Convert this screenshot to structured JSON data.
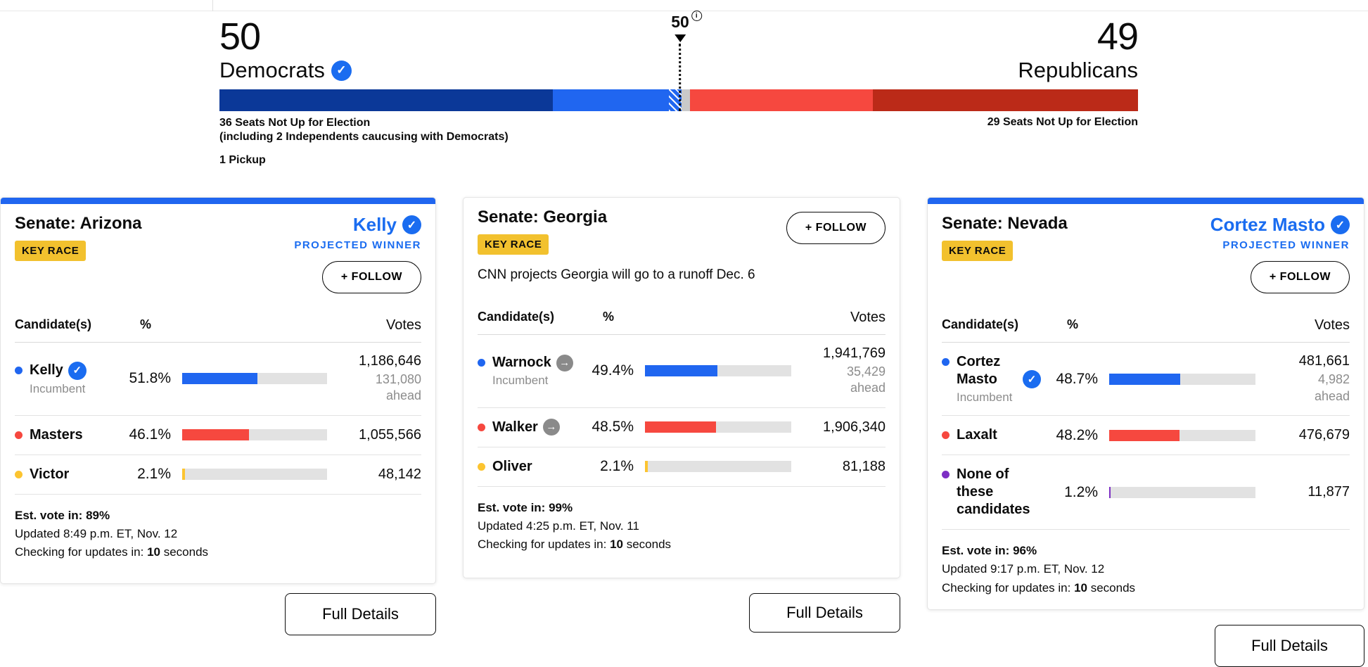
{
  "balance_of_power": {
    "democrats": {
      "count": "50",
      "party": "Democrats",
      "seats_note": "36 Seats Not Up for Election",
      "seats_subnote": "(including 2 Independents caucusing with Democrats)",
      "pickup_note": "1 Pickup"
    },
    "republicans": {
      "count": "49",
      "party": "Republicans",
      "seats_note": "29 Seats Not Up for Election"
    },
    "majority_marker": {
      "label": "50",
      "info_icon": "i"
    },
    "segments": [
      {
        "name": "dem-seats-not-up",
        "pct": 36.3,
        "color": "#0b3898"
      },
      {
        "name": "dem-projected",
        "pct": 12.6,
        "color": "#2066f0"
      },
      {
        "name": "dem-leading-hatched",
        "pct": 1.4,
        "color": "#2066f0"
      },
      {
        "name": "undecided",
        "pct": 0.9,
        "color": "#c9c9c9"
      },
      {
        "name": "rep-projected",
        "pct": 19.9,
        "color": "#f6483f"
      },
      {
        "name": "rep-seats-not-up",
        "pct": 28.9,
        "color": "#bb2a18"
      }
    ]
  },
  "cards": [
    {
      "title": "Senate: Arizona",
      "badge": "KEY RACE",
      "winner_name": "Kelly",
      "winner_label": "PROJECTED WINNER",
      "follow_label": "+ FOLLOW",
      "headers": {
        "candidate": "Candidate(s)",
        "percent": "%",
        "votes": "Votes"
      },
      "rows": [
        {
          "name": "Kelly",
          "subtitle": "Incumbent",
          "percent": "51.8%",
          "percent_value": 51.8,
          "votes": "1,186,646",
          "ahead": "131,080",
          "ahead_suffix": "ahead",
          "dot_color": "#2066f0",
          "bar_color": "#2066f0"
        },
        {
          "name": "Masters",
          "percent": "46.1%",
          "percent_value": 46.1,
          "votes": "1,055,566",
          "dot_color": "#f6483f",
          "bar_color": "#f6483f"
        },
        {
          "name": "Victor",
          "percent": "2.1%",
          "percent_value": 2.1,
          "votes": "48,142",
          "dot_color": "#fcc430",
          "bar_color": "#fcc430"
        }
      ],
      "footer": {
        "est": "Est. vote in: 89%",
        "updated": "Updated 8:49 p.m. ET, Nov. 12",
        "checking_prefix": "Checking for updates in: ",
        "checking_value": "10",
        "checking_suffix": " seconds"
      },
      "full_details": "Full Details"
    },
    {
      "title": "Senate: Georgia",
      "badge": "KEY RACE",
      "follow_label": "+ FOLLOW",
      "note": "CNN projects Georgia will go to a runoff Dec. 6",
      "headers": {
        "candidate": "Candidate(s)",
        "percent": "%",
        "votes": "Votes"
      },
      "rows": [
        {
          "name": "Warnock",
          "subtitle": "Incumbent",
          "percent": "49.4%",
          "percent_value": 49.4,
          "votes": "1,941,769",
          "ahead": "35,429",
          "ahead_suffix": "ahead",
          "dot_color": "#2066f0",
          "bar_color": "#2066f0",
          "runoff_icon": "→"
        },
        {
          "name": "Walker",
          "percent": "48.5%",
          "percent_value": 48.5,
          "votes": "1,906,340",
          "dot_color": "#f6483f",
          "bar_color": "#f6483f",
          "runoff_icon": "→"
        },
        {
          "name": "Oliver",
          "percent": "2.1%",
          "percent_value": 2.1,
          "votes": "81,188",
          "dot_color": "#fcc430",
          "bar_color": "#fcc430"
        }
      ],
      "footer": {
        "est": "Est. vote in: 99%",
        "updated": "Updated 4:25 p.m. ET, Nov. 11",
        "checking_prefix": "Checking for updates in: ",
        "checking_value": "10",
        "checking_suffix": " seconds"
      },
      "full_details": "Full Details"
    },
    {
      "title": "Senate: Nevada",
      "badge": "KEY RACE",
      "winner_name": "Cortez Masto",
      "winner_label": "PROJECTED WINNER",
      "follow_label": "+ FOLLOW",
      "headers": {
        "candidate": "Candidate(s)",
        "percent": "%",
        "votes": "Votes"
      },
      "rows": [
        {
          "name": "Cortez Masto",
          "subtitle": "Incumbent",
          "percent": "48.7%",
          "percent_value": 48.7,
          "votes": "481,661",
          "ahead": "4,982",
          "ahead_suffix": "ahead",
          "dot_color": "#2066f0",
          "bar_color": "#2066f0"
        },
        {
          "name": "Laxalt",
          "percent": "48.2%",
          "percent_value": 48.2,
          "votes": "476,679",
          "dot_color": "#f6483f",
          "bar_color": "#f6483f"
        },
        {
          "name": "None of these candidates",
          "percent": "1.2%",
          "percent_value": 1.2,
          "votes": "11,877",
          "dot_color": "#7d2fc4",
          "bar_color": "#7d2fc4"
        }
      ],
      "footer": {
        "est": "Est. vote in: 96%",
        "updated": "Updated 9:17 p.m. ET, Nov. 12",
        "checking_prefix": "Checking for updates in: ",
        "checking_value": "10",
        "checking_suffix": " seconds"
      },
      "full_details": "Full Details"
    }
  ]
}
